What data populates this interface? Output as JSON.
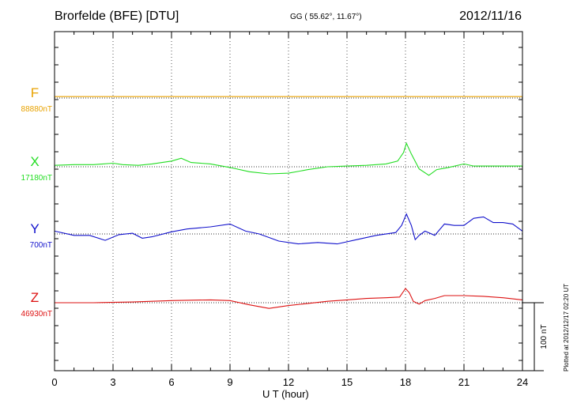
{
  "header": {
    "station": "Brorfelde (BFE)  [DTU]",
    "coords": "GG ( 55.62°,  11.67°)",
    "date": "2012/11/16"
  },
  "footer": {
    "plotted": "Plotted at 2012/12/17 02:20 UT"
  },
  "chart_data": {
    "type": "line",
    "title": "Brorfelde (BFE)  [DTU]",
    "xlabel": "U T (hour)",
    "xlim": [
      0,
      24
    ],
    "xticks": [
      0,
      3,
      6,
      9,
      12,
      15,
      18,
      21,
      24
    ],
    "x_grid": "dotted at every 3 h",
    "scale_bar_label": "100 nT",
    "scale_bar_nT": 100,
    "series": [
      {
        "letter": "F",
        "baseline_label": "88880nT",
        "color": "#e8a200",
        "x": [
          0,
          24
        ],
        "y": [
          2,
          2
        ]
      },
      {
        "letter": "X",
        "baseline_label": "17180nT",
        "color": "#22dd22",
        "x": [
          0,
          1,
          2,
          3,
          3.5,
          4.3,
          5,
          6,
          6.5,
          7,
          8,
          9,
          10,
          11,
          12,
          13,
          14,
          15,
          16,
          17,
          17.6,
          17.9,
          18.05,
          18.3,
          18.7,
          19.2,
          19.6,
          20.2,
          21,
          21.5,
          22,
          23,
          24
        ],
        "y": [
          2,
          3,
          3,
          5,
          3,
          2,
          4,
          8,
          12,
          6,
          4,
          -1,
          -7,
          -10,
          -9,
          -4,
          0,
          1,
          2,
          4,
          8,
          20,
          33,
          18,
          -3,
          -12,
          -4,
          -1,
          4,
          1,
          1,
          1,
          1
        ]
      },
      {
        "letter": "Y",
        "baseline_label": "700nT",
        "color": "#1111cc",
        "x": [
          0,
          1,
          1.8,
          2.6,
          3.3,
          4,
          4.5,
          5,
          6,
          6.8,
          8,
          9,
          9.8,
          10.5,
          11.5,
          12.5,
          13.5,
          14.5,
          15.5,
          16.5,
          17.5,
          17.8,
          18.05,
          18.3,
          18.5,
          18.7,
          19,
          19.5,
          20,
          20.5,
          21,
          21.5,
          22,
          22.5,
          23,
          23.5,
          24
        ],
        "y": [
          4,
          -2,
          -2,
          -9,
          -1,
          1,
          -6,
          -4,
          3,
          7,
          10,
          14,
          4,
          0,
          -10,
          -14,
          -12,
          -14,
          -8,
          -2,
          2,
          12,
          28,
          12,
          -8,
          -2,
          4,
          -2,
          14,
          12,
          12,
          22,
          24,
          16,
          16,
          14,
          4
        ]
      },
      {
        "letter": "Z",
        "baseline_label": "46930nT",
        "color": "#dd1111",
        "x": [
          0,
          2,
          4,
          6,
          8,
          9,
          10,
          11,
          12,
          13,
          14,
          15,
          16,
          17,
          17.7,
          18,
          18.2,
          18.4,
          18.7,
          19,
          19.5,
          20,
          21,
          22,
          23,
          24
        ],
        "y": [
          0,
          0,
          1,
          3,
          4,
          3,
          -3,
          -8,
          -4,
          -1,
          2,
          4,
          6,
          7,
          8,
          20,
          14,
          2,
          -2,
          3,
          6,
          10,
          10,
          9,
          7,
          4
        ]
      }
    ]
  },
  "styles": {
    "axis_color": "#000000",
    "grid_color": "#555555",
    "background": "#ffffff"
  }
}
